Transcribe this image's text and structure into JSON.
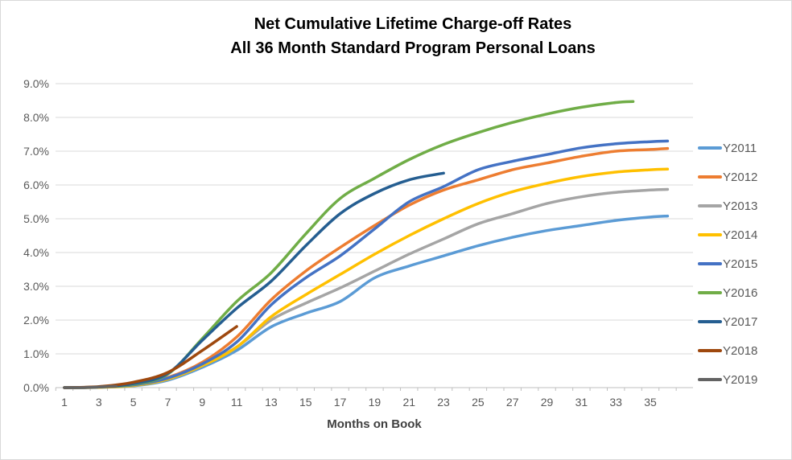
{
  "chart": {
    "title_line1": "Net Cumulative Lifetime Charge-off Rates",
    "title_line2": "All 36 Month Standard Program Personal Loans",
    "xlabel": "Months on Book"
  },
  "chart_data": {
    "type": "line",
    "title": "Net Cumulative Lifetime Charge-off Rates",
    "subtitle": "All 36 Month Standard Program Personal Loans",
    "xlabel": "Months on Book",
    "ylabel": "",
    "xlim": [
      1,
      36
    ],
    "ylim": [
      0,
      9
    ],
    "grid": true,
    "legend_position": "right",
    "x_ticks": [
      1,
      3,
      5,
      7,
      9,
      11,
      13,
      15,
      17,
      19,
      21,
      23,
      25,
      27,
      29,
      31,
      33,
      35
    ],
    "y_tick_values": [
      0,
      1,
      2,
      3,
      4,
      5,
      6,
      7,
      8,
      9
    ],
    "y_tick_labels": [
      "0.0%",
      "1.0%",
      "2.0%",
      "3.0%",
      "4.0%",
      "5.0%",
      "6.0%",
      "7.0%",
      "8.0%",
      "9.0%"
    ],
    "units": "percent",
    "gridline_color": "#d9d9d9",
    "axis_color": "#bfbfbf",
    "tick_label_color": "#595959",
    "series": [
      {
        "name": "Y2011",
        "color": "#5B9BD5",
        "x": [
          1,
          3,
          5,
          7,
          9,
          11,
          13,
          15,
          17,
          19,
          21,
          23,
          25,
          27,
          29,
          31,
          33,
          35,
          36
        ],
        "y": [
          0.0,
          0.01,
          0.05,
          0.22,
          0.6,
          1.1,
          1.8,
          2.2,
          2.55,
          3.25,
          3.6,
          3.9,
          4.2,
          4.45,
          4.65,
          4.8,
          4.95,
          5.05,
          5.08
        ]
      },
      {
        "name": "Y2012",
        "color": "#ED7D31",
        "x": [
          1,
          3,
          5,
          7,
          9,
          11,
          13,
          15,
          17,
          19,
          21,
          23,
          25,
          27,
          29,
          31,
          33,
          35,
          36
        ],
        "y": [
          0.0,
          0.02,
          0.08,
          0.3,
          0.75,
          1.5,
          2.6,
          3.45,
          4.15,
          4.8,
          5.4,
          5.85,
          6.15,
          6.45,
          6.65,
          6.85,
          7.0,
          7.05,
          7.08
        ]
      },
      {
        "name": "Y2013",
        "color": "#A5A5A5",
        "x": [
          1,
          3,
          5,
          7,
          9,
          11,
          13,
          15,
          17,
          19,
          21,
          23,
          25,
          27,
          29,
          31,
          33,
          35,
          36
        ],
        "y": [
          0.0,
          0.02,
          0.08,
          0.28,
          0.68,
          1.2,
          2.0,
          2.5,
          2.95,
          3.45,
          3.95,
          4.4,
          4.85,
          5.15,
          5.45,
          5.65,
          5.78,
          5.85,
          5.87
        ]
      },
      {
        "name": "Y2014",
        "color": "#FFC000",
        "x": [
          1,
          3,
          5,
          7,
          9,
          11,
          13,
          15,
          17,
          19,
          21,
          23,
          25,
          27,
          29,
          31,
          33,
          35,
          36
        ],
        "y": [
          0.0,
          0.01,
          0.06,
          0.25,
          0.65,
          1.2,
          2.1,
          2.75,
          3.35,
          3.95,
          4.5,
          5.0,
          5.45,
          5.8,
          6.05,
          6.25,
          6.38,
          6.45,
          6.47
        ]
      },
      {
        "name": "Y2015",
        "color": "#4472C4",
        "x": [
          1,
          3,
          5,
          7,
          9,
          11,
          13,
          15,
          17,
          19,
          21,
          23,
          25,
          27,
          29,
          31,
          33,
          35,
          36
        ],
        "y": [
          0.0,
          0.02,
          0.08,
          0.28,
          0.7,
          1.35,
          2.45,
          3.25,
          3.9,
          4.7,
          5.5,
          5.95,
          6.45,
          6.7,
          6.9,
          7.1,
          7.22,
          7.28,
          7.3
        ]
      },
      {
        "name": "Y2016",
        "color": "#70AD47",
        "x": [
          1,
          3,
          5,
          7,
          9,
          11,
          13,
          15,
          17,
          19,
          21,
          23,
          25,
          27,
          29,
          31,
          33,
          34
        ],
        "y": [
          0.0,
          0.02,
          0.1,
          0.4,
          1.45,
          2.55,
          3.4,
          4.55,
          5.6,
          6.2,
          6.75,
          7.2,
          7.55,
          7.85,
          8.1,
          8.3,
          8.44,
          8.47
        ]
      },
      {
        "name": "Y2017",
        "color": "#255E91",
        "x": [
          1,
          3,
          5,
          7,
          9,
          11,
          13,
          15,
          17,
          19,
          21,
          23
        ],
        "y": [
          0.0,
          0.02,
          0.12,
          0.42,
          1.4,
          2.35,
          3.15,
          4.2,
          5.15,
          5.75,
          6.15,
          6.35
        ]
      },
      {
        "name": "Y2018",
        "color": "#9E480E",
        "x": [
          1,
          3,
          5,
          7,
          9,
          11
        ],
        "y": [
          0.0,
          0.03,
          0.16,
          0.45,
          1.1,
          1.81
        ]
      },
      {
        "name": "Y2019",
        "color": "#636363",
        "x": [
          1,
          2,
          3,
          4
        ],
        "y": [
          0.0,
          0.0,
          0.02,
          0.04
        ]
      }
    ]
  }
}
